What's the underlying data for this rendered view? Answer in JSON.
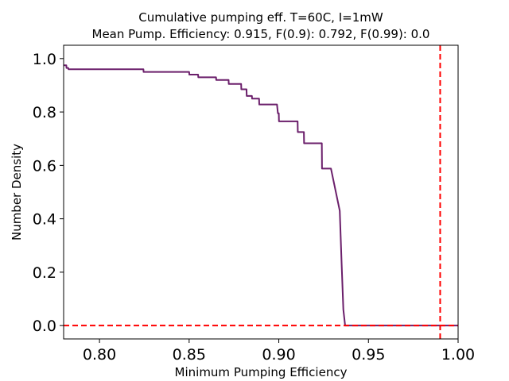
{
  "chart_data": {
    "type": "line",
    "title": "Cumulative pumping eff. T=60C, I=1mW",
    "subtitle": "Mean Pump. Efficiency: 0.915, F(0.9): 0.792, F(0.99): 0.0",
    "xlabel": "Minimum Pumping Efficiency",
    "ylabel": "Number Density",
    "xlim": [
      0.78,
      1.0
    ],
    "ylim": [
      -0.05,
      1.05
    ],
    "xticks": [
      0.8,
      0.85,
      0.9,
      0.95,
      1.0
    ],
    "xtick_labels": [
      "0.80",
      "0.85",
      "0.90",
      "0.95",
      "1.00"
    ],
    "yticks": [
      0.0,
      0.2,
      0.4,
      0.6,
      0.8,
      1.0
    ],
    "ytick_labels": [
      "0.0",
      "0.2",
      "0.4",
      "0.6",
      "0.8",
      "1.0"
    ],
    "grid": false,
    "series": [
      {
        "color": "#6b1f6b",
        "style": "solid",
        "x": [
          0.78,
          0.7815,
          0.7816,
          0.7826,
          0.7827,
          0.784,
          0.8245,
          0.8246,
          0.85,
          0.8501,
          0.855,
          0.8551,
          0.865,
          0.8651,
          0.872,
          0.8721,
          0.879,
          0.8791,
          0.882,
          0.8821,
          0.885,
          0.8851,
          0.889,
          0.8891,
          0.899,
          0.8995,
          0.9,
          0.9001,
          0.9105,
          0.9106,
          0.914,
          0.9141,
          0.917,
          0.9171,
          0.924,
          0.9241,
          0.929,
          0.9291,
          0.934,
          0.935,
          0.936,
          0.937,
          0.938,
          0.95,
          0.98,
          1.0
        ],
        "y": [
          0.975,
          0.975,
          0.965,
          0.965,
          0.96,
          0.96,
          0.96,
          0.95,
          0.95,
          0.94,
          0.94,
          0.93,
          0.93,
          0.92,
          0.92,
          0.905,
          0.905,
          0.885,
          0.885,
          0.86,
          0.86,
          0.85,
          0.85,
          0.828,
          0.828,
          0.795,
          0.795,
          0.765,
          0.765,
          0.725,
          0.725,
          0.683,
          0.683,
          0.683,
          0.683,
          0.588,
          0.588,
          0.588,
          0.43,
          0.24,
          0.06,
          0.0,
          0.0,
          0.0,
          0.0,
          0.0
        ]
      }
    ],
    "reference_lines": [
      {
        "orientation": "horizontal",
        "value": 0.0,
        "color": "#ff0000",
        "style": "dashed"
      },
      {
        "orientation": "vertical",
        "value": 0.99,
        "color": "#ff0000",
        "style": "dashed"
      }
    ]
  }
}
